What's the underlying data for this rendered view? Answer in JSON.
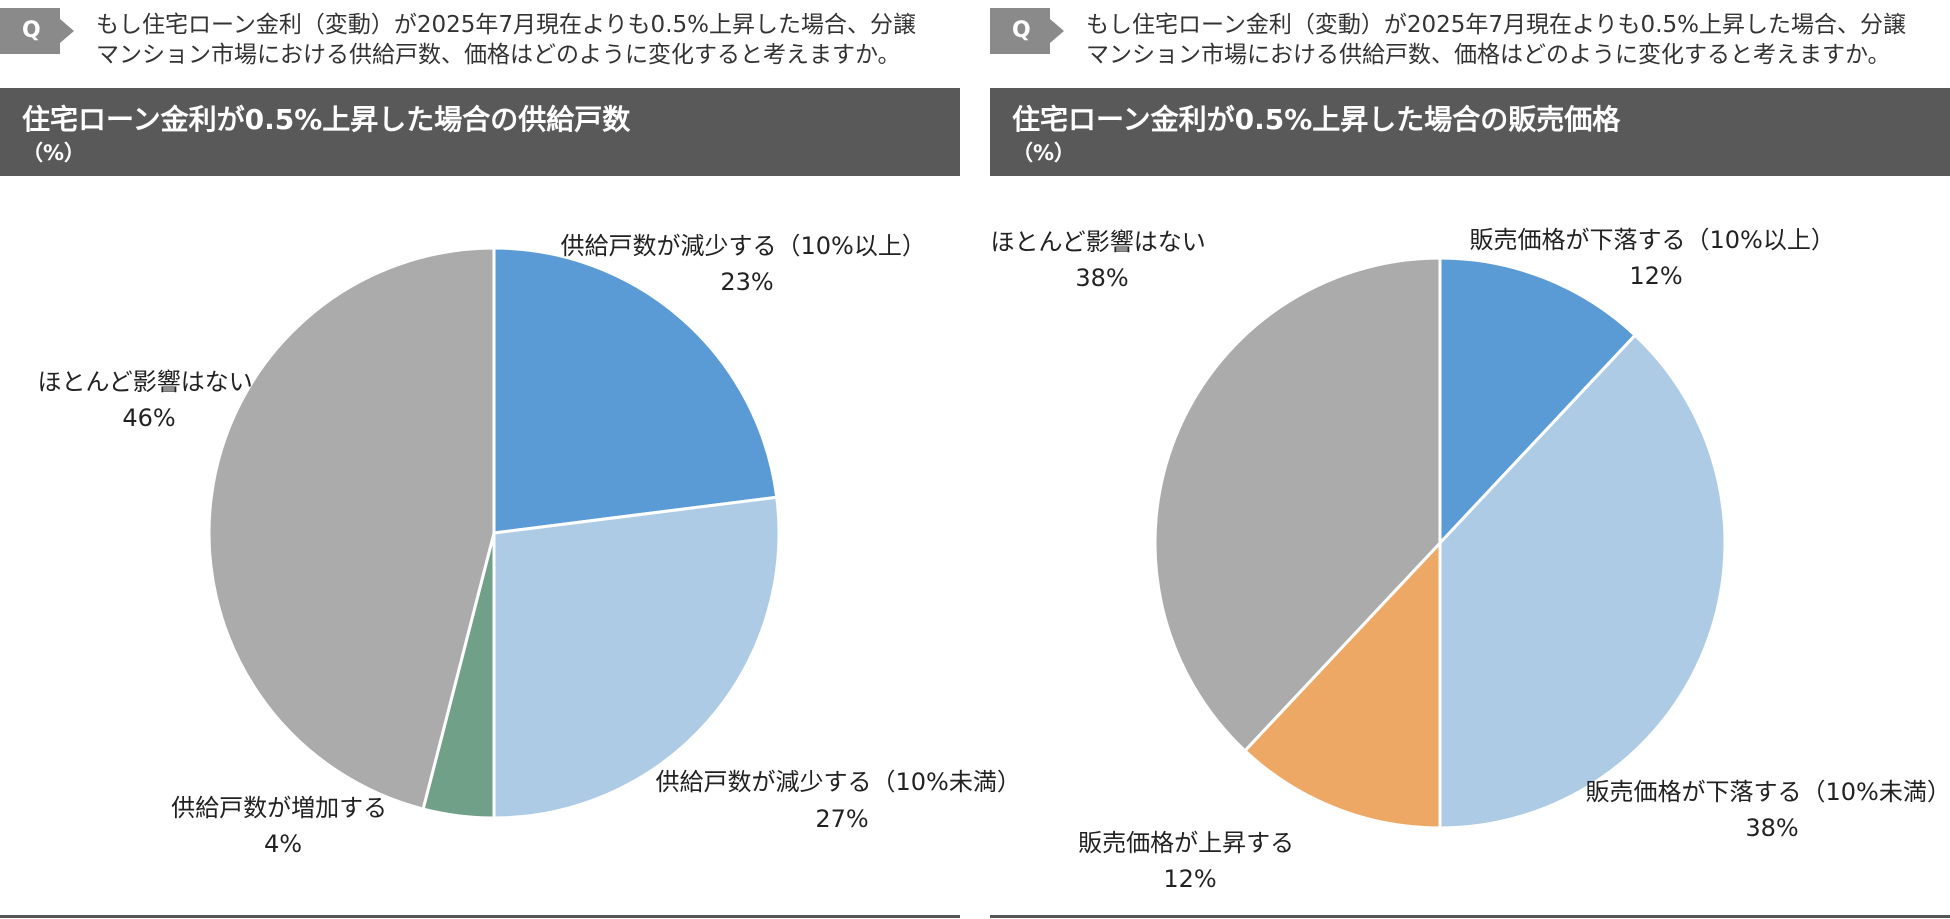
{
  "panels": [
    {
      "q_badge": "Q",
      "question": "もし住宅ローン金利（変動）が2025年7月現在よりも0.5%上昇した場合、分譲\nマンション市場における供給戸数、価格はどのように変化すると考えますか。",
      "header_title": "住宅ローン金利が0.5%上昇した場合の供給戸数",
      "header_unit": "（%）"
    },
    {
      "q_badge": "Q",
      "question": "もし住宅ローン金利（変動）が2025年7月現在よりも0.5%上昇した場合、分譲\nマンション市場における供給戸数、価格はどのように変化すると考えますか。",
      "header_title": "住宅ローン金利が0.5%上昇した場合の販売価格",
      "header_unit": "（%）"
    }
  ],
  "chart_data": [
    {
      "type": "pie",
      "start_angle": "12 o'clock, clockwise",
      "slices": [
        {
          "label": "供給戸数が減少する（10%以上）",
          "value": 23,
          "value_label": "23%",
          "color": "#5b9bd5"
        },
        {
          "label": "供給戸数が減少する（10%未満）",
          "value": 27,
          "value_label": "27%",
          "color": "#aecbe6"
        },
        {
          "label": "供給戸数が増加する",
          "value": 4,
          "value_label": "4%",
          "color": "#70a088"
        },
        {
          "label": "ほとんど影響はない",
          "value": 46,
          "value_label": "46%",
          "color": "#ababab"
        }
      ]
    },
    {
      "type": "pie",
      "start_angle": "12 o'clock, clockwise",
      "slices": [
        {
          "label": "販売価格が下落する（10%以上）",
          "value": 12,
          "value_label": "12%",
          "color": "#5b9bd5"
        },
        {
          "label": "販売価格が下落する（10%未満）",
          "value": 38,
          "value_label": "38%",
          "color": "#aecbe6"
        },
        {
          "label": "販売価格が上昇する",
          "value": 12,
          "value_label": "12%",
          "color": "#eea866"
        },
        {
          "label": "ほとんど影響はない",
          "value": 38,
          "value_label": "38%",
          "color": "#ababab"
        }
      ]
    }
  ]
}
